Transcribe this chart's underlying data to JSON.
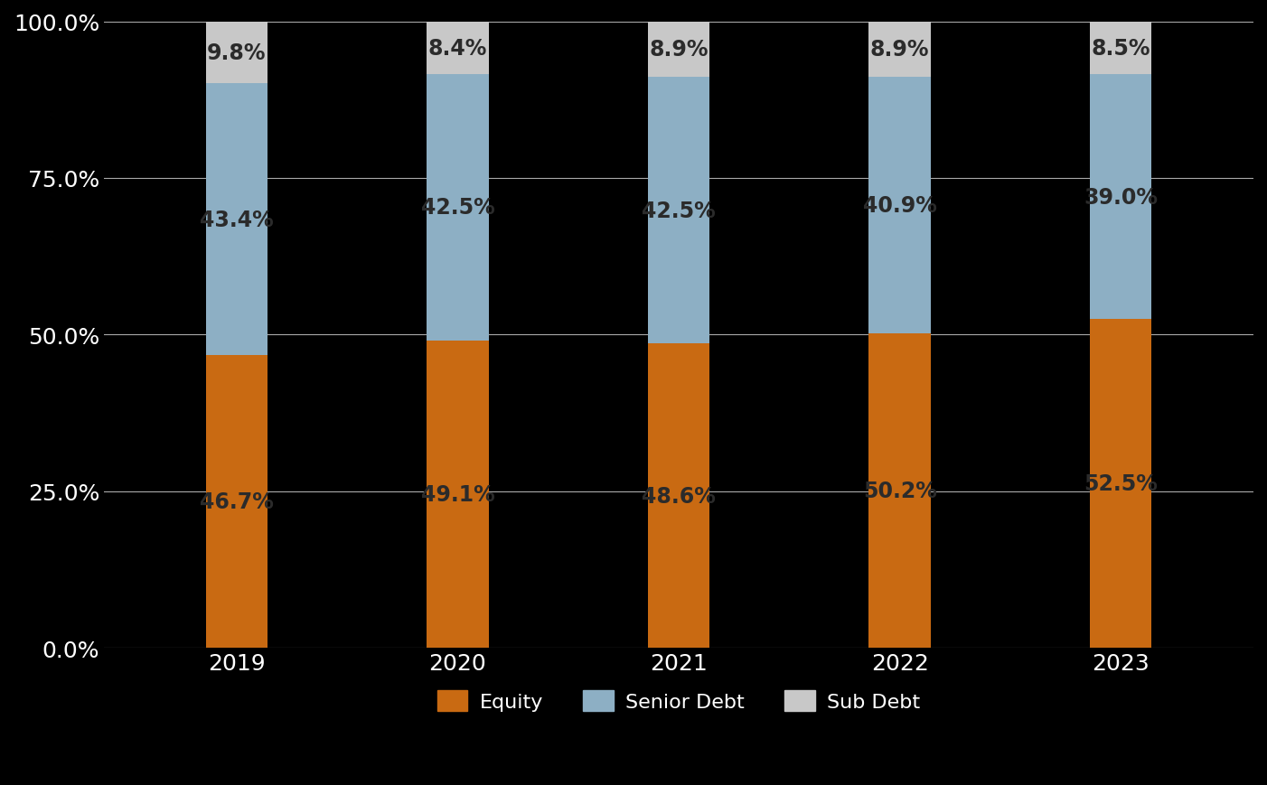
{
  "years": [
    "2019",
    "2020",
    "2021",
    "2022",
    "2023"
  ],
  "equity": [
    46.7,
    49.1,
    48.6,
    50.2,
    52.5
  ],
  "senior_debt": [
    43.4,
    42.5,
    42.5,
    40.9,
    39.0
  ],
  "sub_debt": [
    9.8,
    8.4,
    8.9,
    8.9,
    8.5
  ],
  "equity_color": "#C96A12",
  "senior_debt_color": "#8DAFC4",
  "sub_debt_color": "#C8C8C8",
  "background_color": "#000000",
  "text_color": "#FFFFFF",
  "bar_label_color": "#2B2B2B",
  "bar_width": 0.28,
  "ylim": [
    0,
    100
  ],
  "yticks": [
    0,
    25,
    50,
    75,
    100
  ],
  "ytick_labels": [
    "0.0%",
    "25.0%",
    "50.0%",
    "75.0%",
    "100.0%"
  ],
  "legend_labels": [
    "Equity",
    "Senior Debt",
    "Sub Debt"
  ],
  "grid_color": "#AAAAAA",
  "bar_label_fontsize": 17,
  "legend_fontsize": 16,
  "tick_fontsize": 18
}
